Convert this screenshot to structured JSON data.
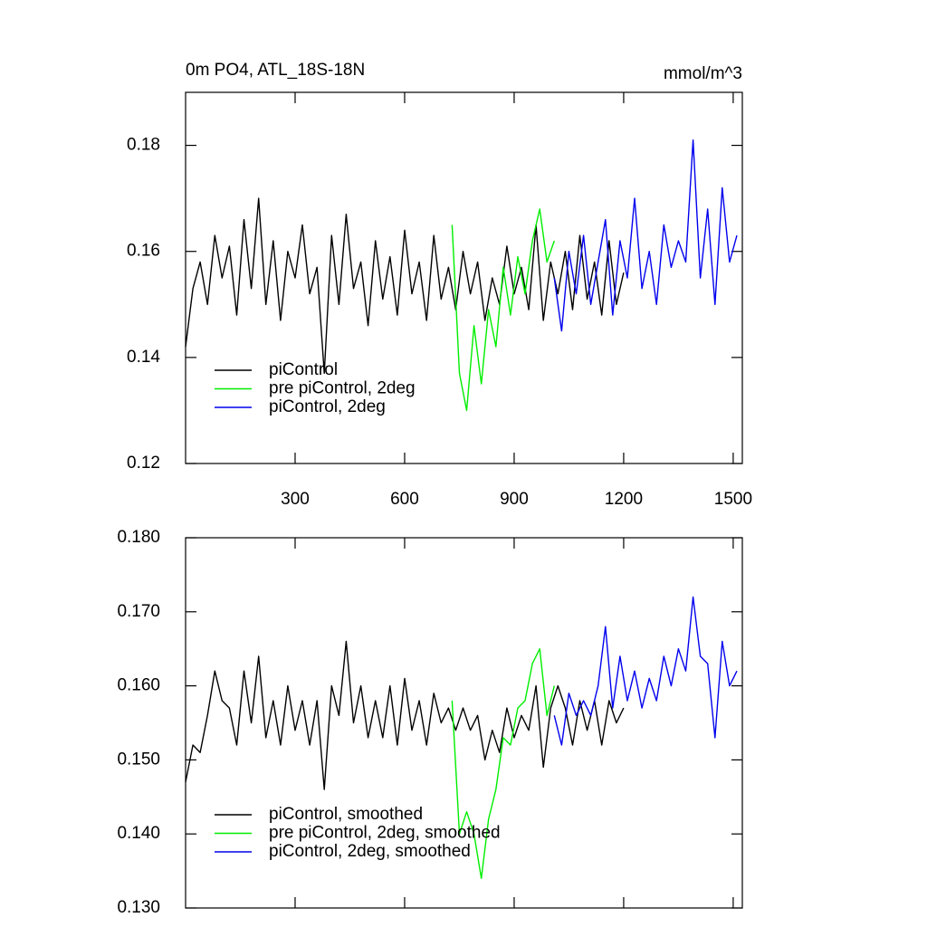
{
  "chart_data": [
    {
      "type": "line",
      "title": "0m PO4, ATL_18S-18N",
      "units": "mmol/m^3",
      "xlim": [
        0,
        1525
      ],
      "xticks": [
        300,
        600,
        900,
        1200,
        1500
      ],
      "ylim": [
        0.12,
        0.19
      ],
      "yticks": [
        0.12,
        0.14,
        0.16,
        0.18
      ],
      "legend": "lower left",
      "series": [
        {
          "name": "piControl",
          "color": "#000000",
          "x": [
            0,
            20,
            40,
            60,
            80,
            100,
            120,
            140,
            160,
            180,
            200,
            220,
            240,
            260,
            280,
            300,
            320,
            340,
            360,
            380,
            400,
            420,
            440,
            460,
            480,
            500,
            520,
            540,
            560,
            580,
            600,
            620,
            640,
            660,
            680,
            700,
            720,
            740,
            760,
            780,
            800,
            820,
            840,
            860,
            880,
            900,
            920,
            940,
            960,
            980,
            1000,
            1020,
            1040,
            1060,
            1080,
            1100,
            1120,
            1140,
            1160,
            1180,
            1200
          ],
          "values": [
            0.142,
            0.153,
            0.158,
            0.15,
            0.163,
            0.155,
            0.161,
            0.148,
            0.166,
            0.153,
            0.17,
            0.15,
            0.162,
            0.147,
            0.16,
            0.155,
            0.165,
            0.152,
            0.157,
            0.137,
            0.163,
            0.15,
            0.167,
            0.153,
            0.158,
            0.146,
            0.162,
            0.151,
            0.159,
            0.148,
            0.164,
            0.152,
            0.158,
            0.147,
            0.163,
            0.151,
            0.157,
            0.149,
            0.16,
            0.152,
            0.158,
            0.147,
            0.155,
            0.15,
            0.161,
            0.152,
            0.157,
            0.149,
            0.165,
            0.147,
            0.158,
            0.152,
            0.16,
            0.149,
            0.163,
            0.151,
            0.158,
            0.148,
            0.162,
            0.15,
            0.156
          ]
        },
        {
          "name": "pre piControl, 2deg",
          "color": "#00ee00",
          "x": [
            730,
            750,
            770,
            790,
            810,
            830,
            850,
            870,
            890,
            910,
            930,
            950,
            970,
            990,
            1010
          ],
          "values": [
            0.165,
            0.137,
            0.13,
            0.146,
            0.135,
            0.149,
            0.142,
            0.157,
            0.148,
            0.159,
            0.152,
            0.162,
            0.168,
            0.158,
            0.162
          ]
        },
        {
          "name": "piControl, 2deg",
          "color": "#0000ee",
          "x": [
            1010,
            1030,
            1050,
            1070,
            1090,
            1110,
            1130,
            1150,
            1170,
            1190,
            1210,
            1230,
            1250,
            1270,
            1290,
            1310,
            1330,
            1350,
            1370,
            1390,
            1410,
            1430,
            1450,
            1470,
            1490,
            1510
          ],
          "values": [
            0.155,
            0.145,
            0.16,
            0.152,
            0.163,
            0.15,
            0.158,
            0.166,
            0.148,
            0.162,
            0.155,
            0.17,
            0.153,
            0.16,
            0.15,
            0.165,
            0.157,
            0.162,
            0.158,
            0.181,
            0.155,
            0.168,
            0.15,
            0.172,
            0.158,
            0.163
          ]
        }
      ]
    },
    {
      "type": "line",
      "xlim": [
        0,
        1525
      ],
      "ylim": [
        0.13,
        0.18
      ],
      "yticks": [
        {
          "value": 0.13,
          "label": "0.130"
        },
        {
          "value": 0.14,
          "label": "0.140"
        },
        {
          "value": 0.15,
          "label": "0.150"
        },
        {
          "value": 0.16,
          "label": "0.160"
        },
        {
          "value": 0.17,
          "label": "0.170"
        },
        {
          "value": 0.18,
          "label": "0.180"
        }
      ],
      "legend": "lower left",
      "series": [
        {
          "name": "piControl, smoothed",
          "color": "#000000",
          "x": [
            0,
            20,
            40,
            60,
            80,
            100,
            120,
            140,
            160,
            180,
            200,
            220,
            240,
            260,
            280,
            300,
            320,
            340,
            360,
            380,
            400,
            420,
            440,
            460,
            480,
            500,
            520,
            540,
            560,
            580,
            600,
            620,
            640,
            660,
            680,
            700,
            720,
            740,
            760,
            780,
            800,
            820,
            840,
            860,
            880,
            900,
            920,
            940,
            960,
            980,
            1000,
            1020,
            1040,
            1060,
            1080,
            1100,
            1120,
            1140,
            1160,
            1180,
            1200
          ],
          "values": [
            0.147,
            0.152,
            0.151,
            0.156,
            0.162,
            0.158,
            0.157,
            0.152,
            0.162,
            0.155,
            0.164,
            0.153,
            0.158,
            0.152,
            0.16,
            0.154,
            0.158,
            0.152,
            0.158,
            0.146,
            0.16,
            0.156,
            0.166,
            0.155,
            0.16,
            0.153,
            0.158,
            0.153,
            0.16,
            0.152,
            0.161,
            0.154,
            0.158,
            0.152,
            0.159,
            0.155,
            0.157,
            0.154,
            0.157,
            0.154,
            0.156,
            0.15,
            0.154,
            0.151,
            0.157,
            0.153,
            0.156,
            0.154,
            0.16,
            0.149,
            0.157,
            0.16,
            0.157,
            0.152,
            0.158,
            0.154,
            0.158,
            0.152,
            0.158,
            0.155,
            0.157
          ]
        },
        {
          "name": "pre piControl, 2deg, smoothed",
          "color": "#00ee00",
          "x": [
            730,
            750,
            770,
            790,
            810,
            830,
            850,
            870,
            890,
            910,
            930,
            950,
            970,
            990,
            1010
          ],
          "values": [
            0.158,
            0.14,
            0.143,
            0.14,
            0.134,
            0.142,
            0.146,
            0.153,
            0.152,
            0.157,
            0.158,
            0.163,
            0.165,
            0.156,
            0.16
          ]
        },
        {
          "name": "piControl, 2deg, smoothed",
          "color": "#0000ee",
          "x": [
            1010,
            1030,
            1050,
            1070,
            1090,
            1110,
            1130,
            1150,
            1170,
            1190,
            1210,
            1230,
            1250,
            1270,
            1290,
            1310,
            1330,
            1350,
            1370,
            1390,
            1410,
            1430,
            1450,
            1470,
            1490,
            1510
          ],
          "values": [
            0.156,
            0.152,
            0.159,
            0.156,
            0.158,
            0.156,
            0.16,
            0.168,
            0.157,
            0.164,
            0.158,
            0.162,
            0.157,
            0.161,
            0.158,
            0.164,
            0.16,
            0.165,
            0.162,
            0.172,
            0.164,
            0.163,
            0.153,
            0.166,
            0.16,
            0.162
          ]
        }
      ]
    }
  ]
}
